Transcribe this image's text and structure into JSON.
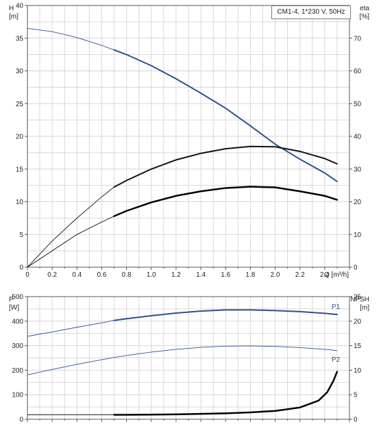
{
  "chart_data": [
    {
      "type": "line",
      "title": "CM1-4, 1*230 V, 50Hz",
      "xlabel": "Q [m³/h]",
      "ylabel_left": "H",
      "ylabel_left_unit": "[m]",
      "ylabel_right": "eta",
      "ylabel_right_unit": "[%]",
      "xlim": [
        0,
        2.6
      ],
      "ylim_left": [
        0,
        40
      ],
      "ylim_right": [
        0,
        80
      ],
      "x_ticks": [
        0,
        0.2,
        0.4,
        0.6,
        0.8,
        1.0,
        1.2,
        1.4,
        1.6,
        1.8,
        2.0,
        2.2,
        2.4
      ],
      "x_tick_labels": [
        "0",
        "0.2",
        "0.4",
        "0.6",
        "0.8",
        "1.0",
        "1.2",
        "1.4",
        "1.6",
        "1.8",
        "2.0",
        "2.2",
        "2.4"
      ],
      "y_left_ticks": [
        0,
        5,
        10,
        15,
        20,
        25,
        30,
        35,
        40
      ],
      "y_right_ticks": [
        0,
        10,
        20,
        30,
        40,
        50,
        60,
        70
      ],
      "grid": true,
      "series": [
        {
          "axis": "left",
          "color": "#2d4f8a",
          "x": [
            0,
            0.2,
            0.4,
            0.6,
            0.7,
            0.8,
            1.0,
            1.2,
            1.4,
            1.6,
            1.8,
            2.0,
            2.2,
            2.4,
            2.5
          ],
          "values": [
            36.5,
            36.0,
            35.1,
            33.9,
            33.2,
            32.5,
            30.8,
            28.8,
            26.6,
            24.3,
            21.6,
            18.8,
            16.5,
            14.4,
            13.1
          ],
          "bold_from": 0.7
        },
        {
          "axis": "right",
          "color": "#111111",
          "x": [
            0,
            0.2,
            0.4,
            0.6,
            0.7,
            0.8,
            1.0,
            1.2,
            1.4,
            1.6,
            1.8,
            2.0,
            2.2,
            2.4,
            2.5
          ],
          "values": [
            0,
            8.0,
            15.0,
            21.5,
            24.5,
            26.5,
            30.0,
            32.8,
            34.8,
            36.2,
            36.9,
            36.8,
            35.4,
            33.2,
            31.6
          ],
          "bold_from": 0.7
        },
        {
          "axis": "right",
          "color": "#000000",
          "x": [
            0,
            0.2,
            0.4,
            0.6,
            0.7,
            0.8,
            1.0,
            1.2,
            1.4,
            1.6,
            1.8,
            2.0,
            2.2,
            2.4,
            2.5
          ],
          "values": [
            0,
            5.0,
            10.0,
            13.8,
            15.6,
            17.2,
            19.8,
            21.8,
            23.2,
            24.2,
            24.6,
            24.4,
            23.2,
            21.8,
            20.6
          ],
          "bold_from": 0.7,
          "bold_width": 2.5
        }
      ]
    },
    {
      "type": "line",
      "xlim": [
        0,
        2.6
      ],
      "ylabel_left": "P",
      "ylabel_left_unit": "[W]",
      "ylabel_right": "NPSH",
      "ylabel_right_unit": "[m]",
      "ylim_left": [
        0,
        500
      ],
      "ylim_right": [
        0,
        25
      ],
      "y_left_ticks": [
        0,
        100,
        200,
        300,
        400,
        500
      ],
      "y_right_ticks": [
        0,
        5,
        10,
        15,
        20,
        25
      ],
      "grid": true,
      "series": [
        {
          "name": "P1",
          "axis": "left",
          "color": "#2d4f8a",
          "x": [
            0,
            0.2,
            0.4,
            0.6,
            0.7,
            0.8,
            1.0,
            1.2,
            1.4,
            1.6,
            1.8,
            2.0,
            2.2,
            2.4,
            2.5
          ],
          "values": [
            338,
            356,
            375,
            393,
            403,
            410,
            422,
            433,
            441,
            446,
            446,
            443,
            439,
            432,
            427
          ],
          "bold_from": 0.7
        },
        {
          "name": "P2",
          "axis": "left",
          "color": "#2d4f8a",
          "x": [
            0,
            0.2,
            0.4,
            0.6,
            0.7,
            0.8,
            1.0,
            1.2,
            1.4,
            1.6,
            1.8,
            2.0,
            2.2,
            2.4,
            2.5
          ],
          "values": [
            181,
            203,
            224,
            243,
            252,
            260,
            274,
            285,
            293,
            298,
            299,
            297,
            292,
            285,
            280
          ]
        },
        {
          "axis": "right",
          "color": "#000000",
          "x": [
            0,
            0.2,
            0.4,
            0.6,
            0.7,
            0.8,
            1.0,
            1.2,
            1.4,
            1.6,
            1.8,
            2.0,
            2.2,
            2.35,
            2.42,
            2.47,
            2.5
          ],
          "values": [
            0.9,
            0.9,
            0.9,
            0.9,
            0.9,
            0.9,
            0.95,
            1.0,
            1.1,
            1.2,
            1.4,
            1.7,
            2.4,
            3.8,
            5.5,
            7.8,
            9.7
          ],
          "bold_from": 0.7,
          "bold_width": 2.5
        }
      ]
    }
  ]
}
